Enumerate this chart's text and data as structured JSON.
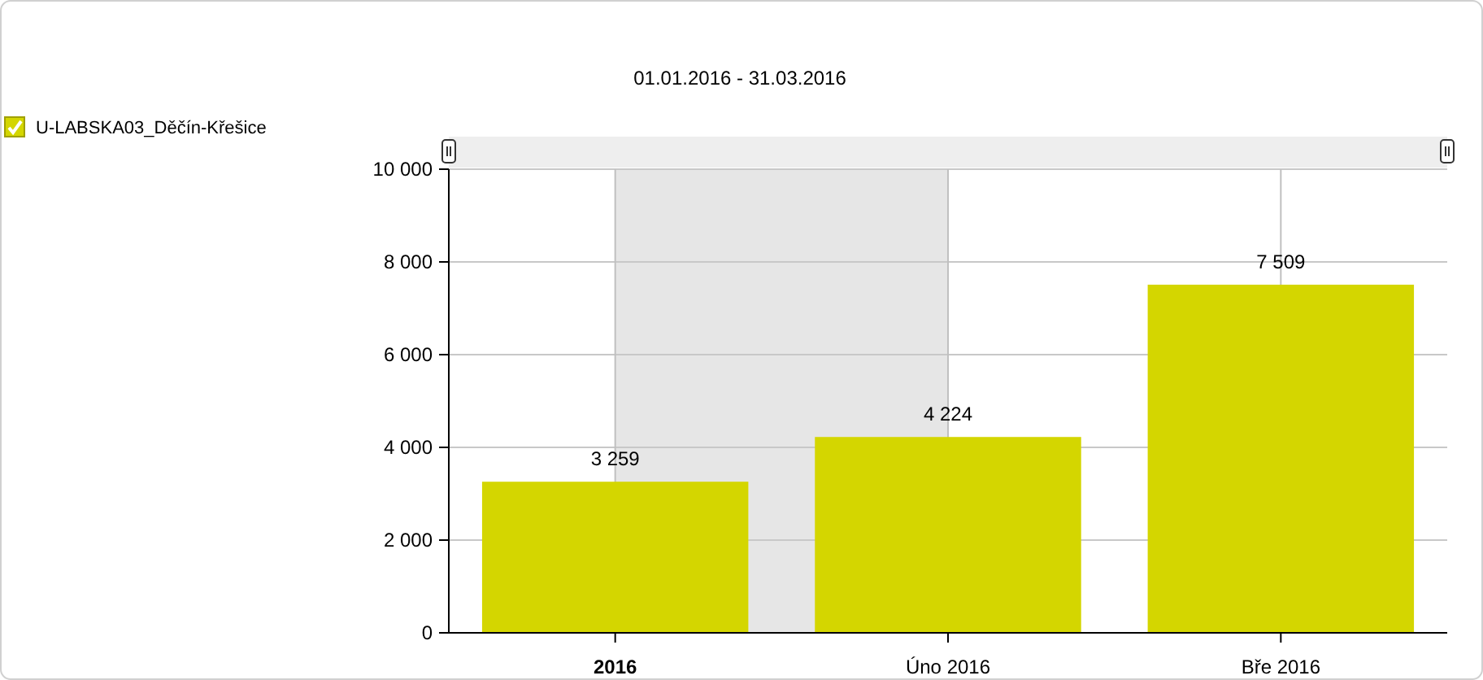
{
  "chart_data": {
    "type": "bar",
    "title": "01.01.2016 - 31.03.2016",
    "categories": [
      "2016",
      "Úno 2016",
      "Bře 2016"
    ],
    "series": [
      {
        "name": "U-LABSKA03_Děčín-Křešice",
        "color": "#d4d600",
        "values": [
          3259,
          4224,
          7509
        ],
        "value_labels": [
          "3 259",
          "4 224",
          "7 509"
        ]
      }
    ],
    "ylim": [
      0,
      10000
    ],
    "yticks": [
      {
        "value": 0,
        "label": "0"
      },
      {
        "value": 2000,
        "label": "2 000"
      },
      {
        "value": 4000,
        "label": "4 000"
      },
      {
        "value": 6000,
        "label": "6 000"
      },
      {
        "value": 8000,
        "label": "8 000"
      },
      {
        "value": 10000,
        "label": "10 000"
      }
    ],
    "bands": [
      {
        "axis": "x",
        "from": "2016",
        "to": "Úno 2016",
        "color": "#e6e6e6"
      }
    ],
    "grid": true,
    "legend": "top left"
  }
}
